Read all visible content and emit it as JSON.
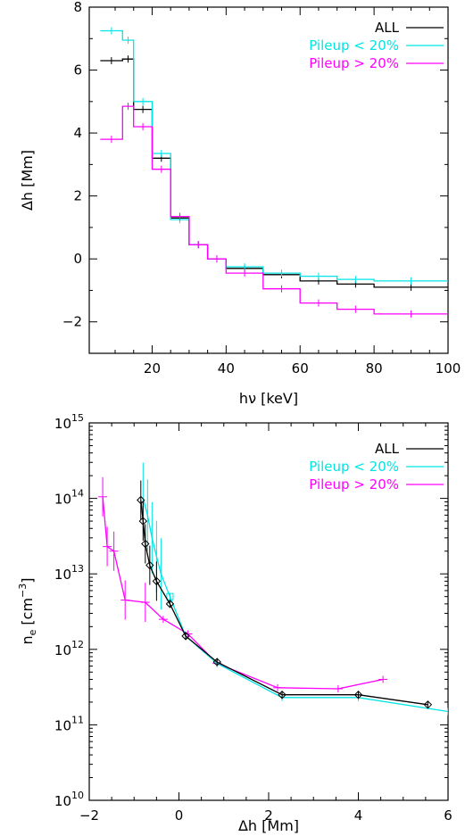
{
  "chart_data": [
    {
      "type": "line",
      "title": "",
      "xlabel": "hν [keV]",
      "ylabel": "Δh [Mm]",
      "xlim": [
        3,
        100
      ],
      "ylim": [
        -3,
        8
      ],
      "x_ticks": [
        "20",
        "40",
        "60",
        "80",
        "100"
      ],
      "y_ticks": [
        "−2",
        "0",
        "2",
        "4",
        "6",
        "8"
      ],
      "x_tick_values": [
        20,
        40,
        60,
        80,
        100
      ],
      "y_tick_values": [
        -2,
        0,
        2,
        4,
        6,
        8
      ],
      "grid": false,
      "legend": "top-right",
      "bin_edges": [
        6,
        12,
        15,
        20,
        25,
        30,
        35,
        40,
        50,
        60,
        70,
        80,
        100
      ],
      "series": [
        {
          "name": "ALL",
          "color": "#000000",
          "values": [
            6.3,
            6.35,
            4.75,
            3.2,
            1.3,
            0.45,
            0.0,
            -0.3,
            -0.5,
            -0.7,
            -0.8,
            -0.9
          ]
        },
        {
          "name": "Pileup < 20%",
          "color": "#00e5e5",
          "values": [
            7.25,
            6.95,
            5.0,
            3.35,
            1.25,
            0.45,
            0.0,
            -0.25,
            -0.45,
            -0.55,
            -0.65,
            -0.7
          ]
        },
        {
          "name": "Pileup > 20%",
          "color": "#ff00ff",
          "values": [
            3.8,
            4.85,
            4.2,
            2.85,
            1.35,
            0.45,
            0.0,
            -0.45,
            -0.95,
            -1.4,
            -1.6,
            -1.75
          ]
        }
      ]
    },
    {
      "type": "line",
      "title": "",
      "xlabel": "Δh [Mm]",
      "ylabel": "n",
      "ylabel_sub": "e",
      "ylabel_unit": "[cm",
      "ylabel_exp": "−3",
      "ylabel_close": "]",
      "xlim": [
        -2,
        6
      ],
      "ylim_log10": [
        10,
        15
      ],
      "yscale": "log",
      "x_ticks": [
        "−2",
        "0",
        "2",
        "4",
        "6"
      ],
      "x_tick_values": [
        -2,
        0,
        2,
        4,
        6
      ],
      "y_ticks_base": "10",
      "y_ticks_exp": [
        "10",
        "11",
        "12",
        "13",
        "14",
        "15"
      ],
      "y_tick_values_log10": [
        10,
        11,
        12,
        13,
        14,
        15
      ],
      "grid": false,
      "legend": "top-right",
      "series": [
        {
          "name": "ALL",
          "color": "#000000",
          "marker": "diamond",
          "x": [
            -0.85,
            -0.8,
            -0.75,
            -0.65,
            -0.5,
            -0.2,
            0.15,
            0.85,
            2.3,
            4.0,
            5.55
          ],
          "y": [
            95000000000000.0,
            50000000000000.0,
            25000000000000.0,
            13000000000000.0,
            8000000000000.0,
            4000000000000.0,
            1500000000000.0,
            680000000000.0,
            250000000000.0,
            250000000000.0,
            185000000000.0
          ]
        },
        {
          "name": "Pileup < 20%",
          "color": "#00e5e5",
          "marker": "square",
          "x": [
            -0.8,
            -0.7,
            -0.6,
            -0.5,
            -0.4,
            -0.2,
            0.15,
            0.85,
            2.3,
            4.0,
            6.0
          ],
          "y": [
            100000000000000.0,
            60000000000000.0,
            30000000000000.0,
            17000000000000.0,
            10000000000000.0,
            5000000000000.0,
            1500000000000.0,
            650000000000.0,
            230000000000.0,
            230000000000.0,
            150000000000.0
          ]
        },
        {
          "name": "Pileup > 20%",
          "color": "#ff00ff",
          "marker": "plus",
          "x": [
            -1.7,
            -1.6,
            -1.45,
            -1.2,
            -0.75,
            -0.35,
            0.2,
            0.85,
            2.2,
            3.55,
            4.55
          ],
          "y": [
            105000000000000.0,
            23000000000000.0,
            20000000000000.0,
            4500000000000.0,
            4200000000000.0,
            2500000000000.0,
            1600000000000.0,
            650000000000.0,
            310000000000.0,
            300000000000.0,
            400000000000.0
          ]
        }
      ]
    }
  ]
}
